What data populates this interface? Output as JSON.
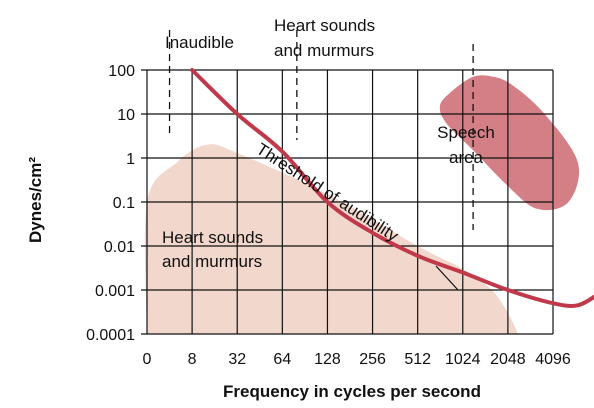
{
  "chart_data": {
    "type": "line",
    "xlabel": "Frequency in cycles per second",
    "ylabel": "Dynes/cm²",
    "x_scale": "log2",
    "y_scale": "log10",
    "xlim": [
      0,
      4096
    ],
    "ylim": [
      0.0001,
      100
    ],
    "x_ticks": [
      "0",
      "8",
      "32",
      "64",
      "128",
      "256",
      "512",
      "1024",
      "2048",
      "4096"
    ],
    "y_ticks": [
      "100",
      "10",
      "1",
      "0.1",
      "0.01",
      "0.001",
      "0.0001"
    ],
    "grid": true,
    "series": [
      {
        "name": "Threshold of audibility",
        "color": "#c0394a",
        "points": [
          [
            8,
            100
          ],
          [
            16,
            10
          ],
          [
            32,
            1.4
          ],
          [
            64,
            0.1
          ],
          [
            128,
            0.02
          ],
          [
            256,
            0.006
          ],
          [
            512,
            0.0025
          ],
          [
            1024,
            0.001
          ],
          [
            2048,
            0.0005
          ],
          [
            3000,
            0.00045
          ],
          [
            4096,
            0.0008
          ]
        ]
      }
    ],
    "regions": [
      {
        "name": "Heart sounds and murmurs",
        "color": "#f1d7cc",
        "points": [
          [
            0,
            0.0001
          ],
          [
            0,
            0.1
          ],
          [
            4,
            0.8
          ],
          [
            10,
            2
          ],
          [
            16,
            1.3
          ],
          [
            64,
            0.15
          ],
          [
            256,
            0.01
          ],
          [
            512,
            0.003
          ],
          [
            800,
            0.001
          ],
          [
            1024,
            0.0003
          ],
          [
            1200,
            0.0001
          ]
        ]
      },
      {
        "name": "Speech area",
        "color": "#d47f86",
        "points": [
          [
            420,
            30
          ],
          [
            600,
            70
          ],
          [
            820,
            70
          ],
          [
            1100,
            45
          ],
          [
            1800,
            10
          ],
          [
            3000,
            0.8
          ],
          [
            2600,
            0.1
          ],
          [
            1600,
            0.07
          ],
          [
            1000,
            0.25
          ],
          [
            600,
            1.5
          ],
          [
            400,
            6
          ],
          [
            360,
            15
          ]
        ]
      }
    ],
    "labels": {
      "curve": "Threshold of audibility",
      "speech_line1": "Speech",
      "speech_line2": "area",
      "heart_line1": "Heart sounds",
      "heart_line2": "and murmurs",
      "inaudible": "Inaudible",
      "top_heart_line1": "Heart sounds",
      "top_heart_line2": "and murmurs"
    }
  }
}
